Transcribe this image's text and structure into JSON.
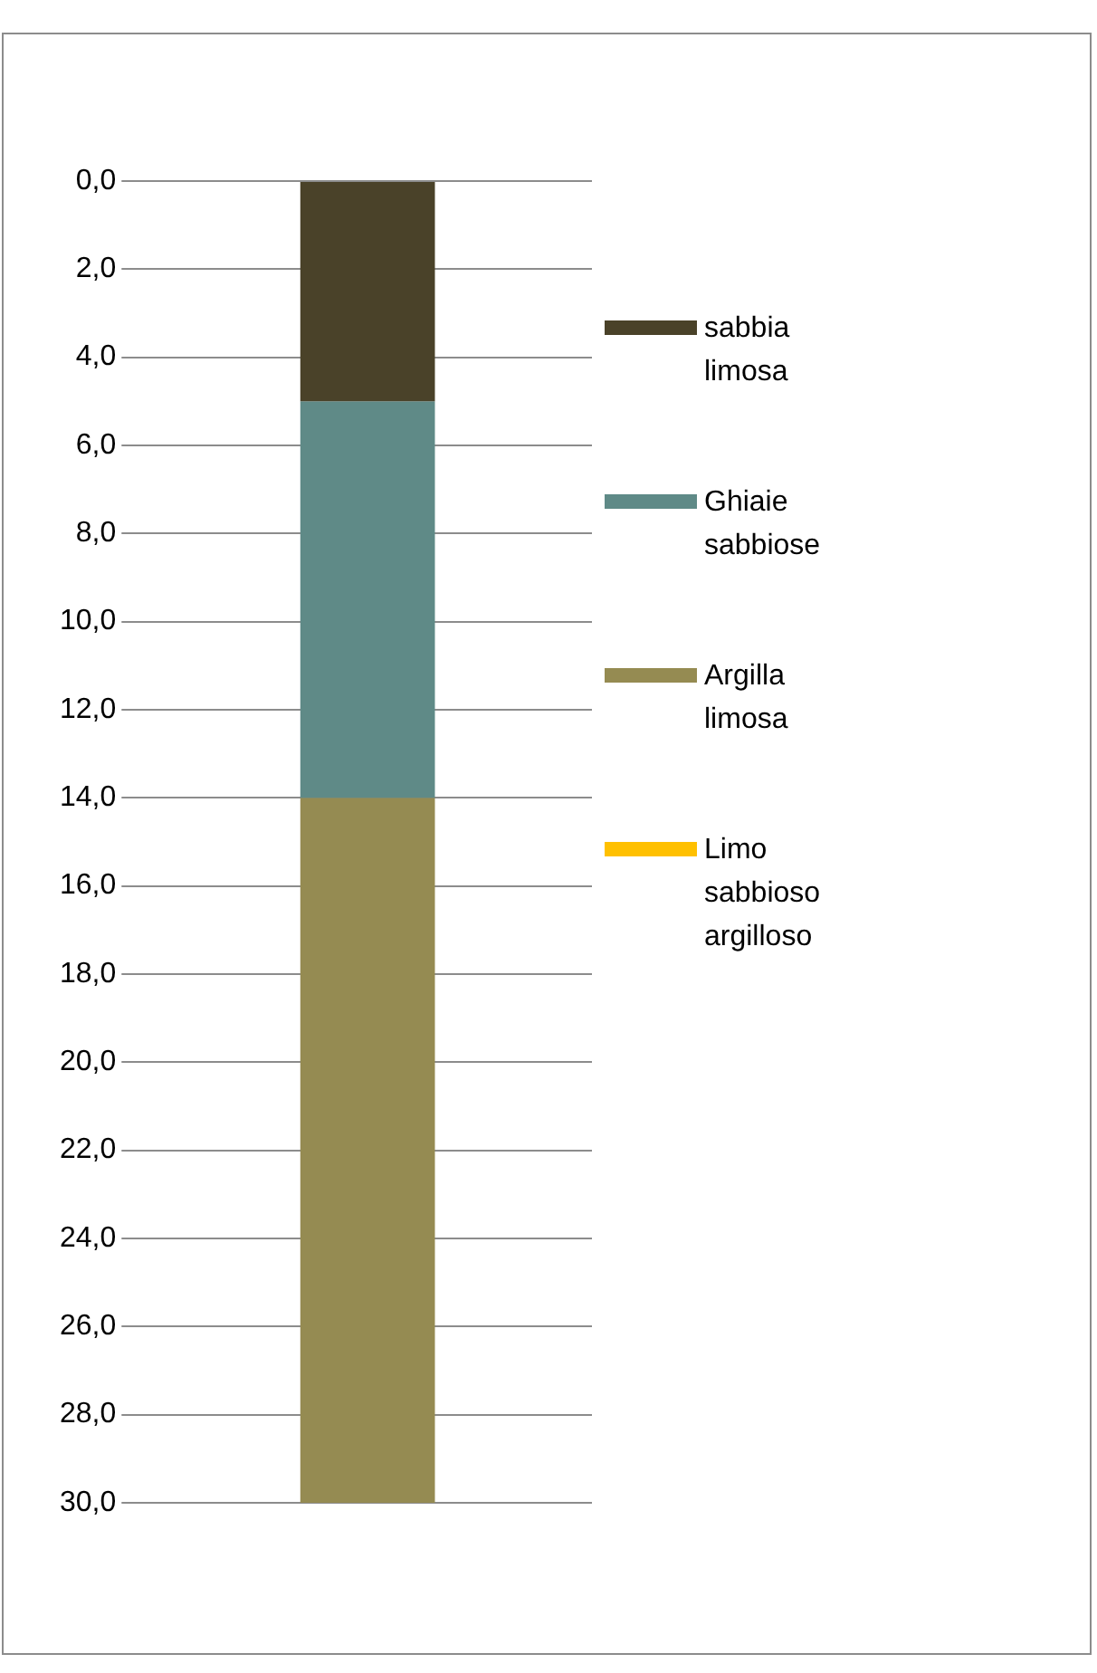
{
  "chart_data": {
    "type": "bar",
    "stacked": true,
    "categories": [
      null
    ],
    "series": [
      {
        "name": "sabbia limosa",
        "color": "#4a4229",
        "values": [
          5
        ]
      },
      {
        "name": "Ghiaie sabbiose",
        "color": "#5f8a87",
        "values": [
          9
        ]
      },
      {
        "name": "Argilla limosa",
        "color": "#958b52",
        "values": [
          16
        ]
      },
      {
        "name": "Limo sabbioso argilloso",
        "color": "#ffc000",
        "values": [
          0
        ]
      }
    ],
    "ylim": [
      30,
      0
    ],
    "yticks": [
      {
        "value": 0,
        "label": "0,0"
      },
      {
        "value": 2,
        "label": "2,0"
      },
      {
        "value": 4,
        "label": "4,0"
      },
      {
        "value": 6,
        "label": "6,0"
      },
      {
        "value": 8,
        "label": "8,0"
      },
      {
        "value": 10,
        "label": "10,0"
      },
      {
        "value": 12,
        "label": "12,0"
      },
      {
        "value": 14,
        "label": "14,0"
      },
      {
        "value": 16,
        "label": "16,0"
      },
      {
        "value": 18,
        "label": "18,0"
      },
      {
        "value": 20,
        "label": "20,0"
      },
      {
        "value": 22,
        "label": "22,0"
      },
      {
        "value": 24,
        "label": "24,0"
      },
      {
        "value": 26,
        "label": "26,0"
      },
      {
        "value": 28,
        "label": "28,0"
      },
      {
        "value": 30,
        "label": "30,0"
      }
    ],
    "grid": "y",
    "legend": "right"
  }
}
